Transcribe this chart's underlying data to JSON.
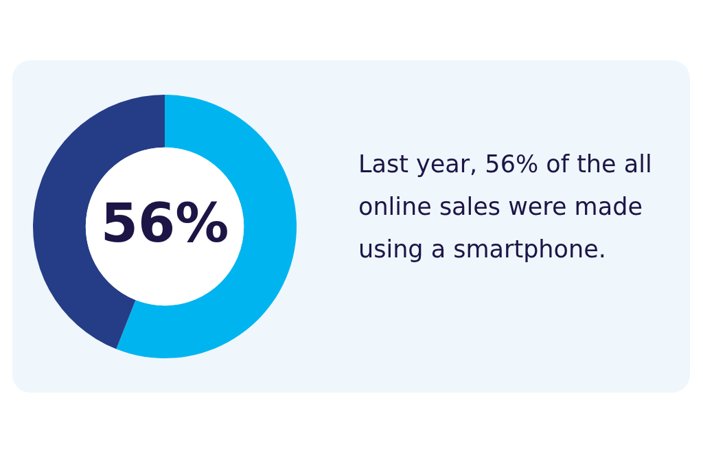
{
  "chart_data": {
    "type": "donut",
    "categories": [
      null,
      null
    ],
    "values": [
      56,
      44
    ],
    "colors": [
      "#00b5ef",
      "#253d86"
    ],
    "annotations": [
      "56%",
      "Last year, 56% of the all online sales were made using a smartphone."
    ]
  }
}
